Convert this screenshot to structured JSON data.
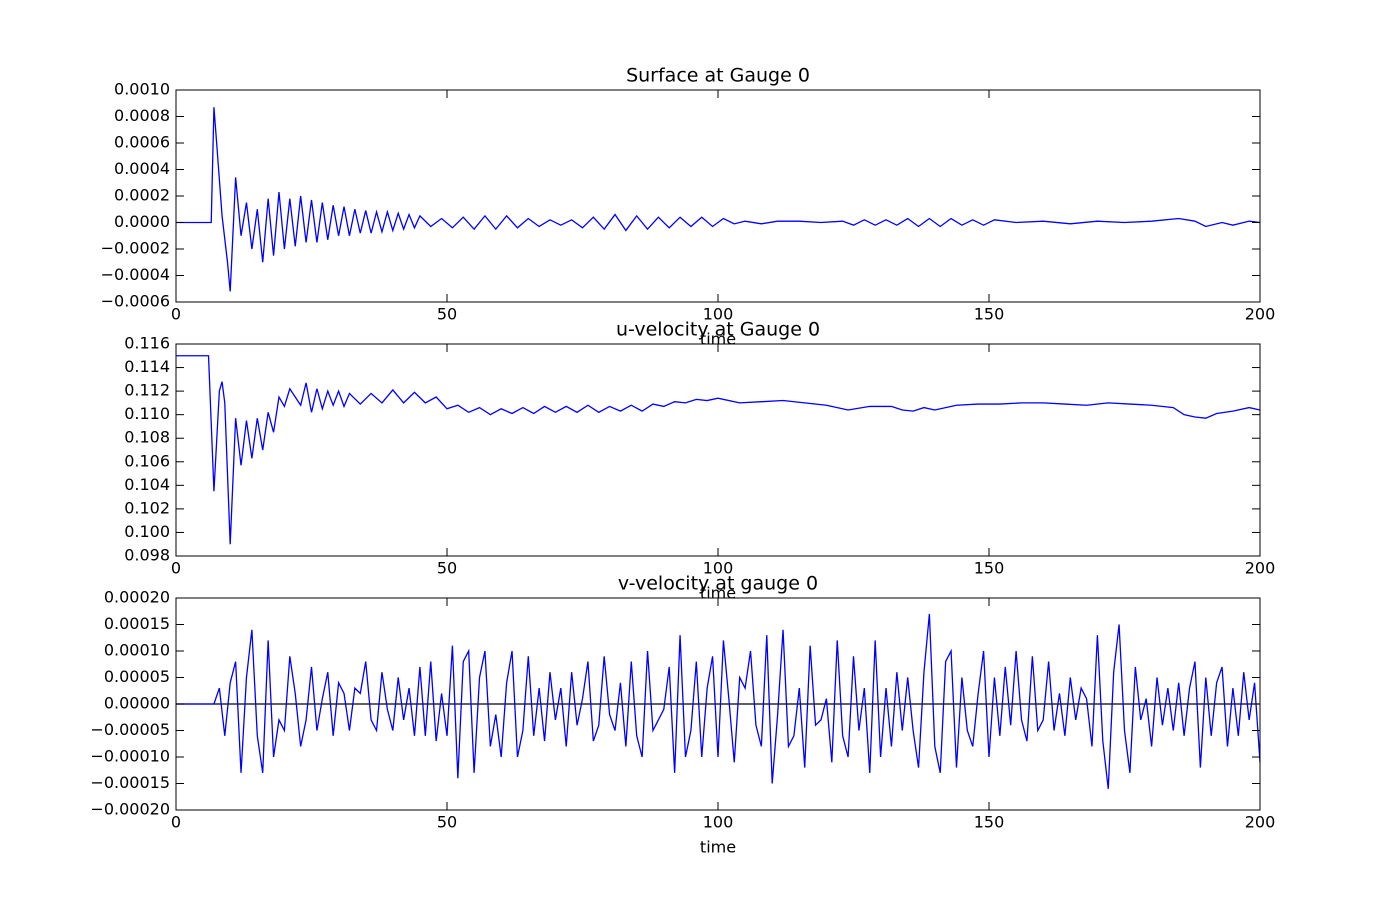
{
  "chart_data": [
    {
      "type": "line",
      "title": "Surface at Gauge 0",
      "xlabel": "time",
      "color": "#0000ff",
      "x": [
        0,
        6.5,
        7,
        7.5,
        8.5,
        9.5,
        10,
        11,
        12,
        13,
        14,
        15,
        16,
        17,
        18,
        19,
        20,
        21,
        22,
        23,
        24,
        25,
        26,
        27,
        28,
        29,
        30,
        31,
        32,
        33,
        34,
        35,
        36,
        37,
        38,
        39,
        40,
        41,
        42,
        43,
        44,
        45,
        47,
        49,
        51,
        53,
        55,
        57,
        59,
        61,
        63,
        65,
        67,
        69,
        71,
        73,
        75,
        77,
        79,
        81,
        83,
        85,
        87,
        89,
        91,
        93,
        95,
        97,
        99,
        101,
        103,
        105,
        108,
        111,
        115,
        119,
        123,
        125,
        127,
        129,
        131,
        133,
        135,
        137,
        139,
        141,
        143,
        145,
        147,
        149,
        151,
        155,
        160,
        165,
        170,
        175,
        180,
        185,
        188,
        190,
        193,
        195,
        198,
        200
      ],
      "values": [
        0,
        0,
        0.00087,
        0.0006,
        5e-05,
        -0.0003,
        -0.00052,
        0.00034,
        -0.0001,
        0.00015,
        -0.0002,
        0.0001,
        -0.0003,
        0.00018,
        -0.00025,
        0.00023,
        -0.0002,
        0.00018,
        -0.00018,
        0.0002,
        -0.00015,
        0.00017,
        -0.00015,
        0.00015,
        -0.00013,
        0.00013,
        -0.0001,
        0.00012,
        -0.0001,
        0.0001,
        -8e-05,
        9e-05,
        -8e-05,
        8e-05,
        -7e-05,
        8e-05,
        -6e-05,
        7e-05,
        -5e-05,
        6e-05,
        -4e-05,
        5e-05,
        -3e-05,
        3e-05,
        -4e-05,
        4e-05,
        -5e-05,
        5e-05,
        -5e-05,
        5e-05,
        -4e-05,
        3e-05,
        -3e-05,
        2e-05,
        -2e-05,
        2e-05,
        -4e-05,
        4e-05,
        -5e-05,
        6e-05,
        -6e-05,
        5e-05,
        -5e-05,
        4e-05,
        -4e-05,
        4e-05,
        -3e-05,
        4e-05,
        -3e-05,
        3e-05,
        -1e-05,
        1e-05,
        -1e-05,
        1e-05,
        1e-05,
        0,
        1e-05,
        -2e-05,
        2e-05,
        -2e-05,
        2e-05,
        -2e-05,
        3e-05,
        -3e-05,
        3e-05,
        -3e-05,
        3e-05,
        -2e-05,
        2e-05,
        -2e-05,
        2e-05,
        0,
        1e-05,
        -1e-05,
        1e-05,
        0,
        1e-05,
        3e-05,
        1e-05,
        -3e-05,
        0,
        -2e-05,
        1e-05,
        0
      ],
      "xlim": [
        0,
        200
      ],
      "xticks": [
        0,
        50,
        100,
        150,
        200
      ],
      "ylim": [
        -0.0006,
        0.001
      ],
      "yticks": [
        {
          "value": -0.0006,
          "label": "−0.0006"
        },
        {
          "value": -0.0004,
          "label": "−0.0004"
        },
        {
          "value": -0.0002,
          "label": "−0.0002"
        },
        {
          "value": 0,
          "label": "0.0000"
        },
        {
          "value": 0.0002,
          "label": "0.0002"
        },
        {
          "value": 0.0004,
          "label": "0.0004"
        },
        {
          "value": 0.0006,
          "label": "0.0006"
        },
        {
          "value": 0.0008,
          "label": "0.0008"
        },
        {
          "value": 0.001,
          "label": "0.0010"
        }
      ]
    },
    {
      "type": "line",
      "title": "u-velocity at Gauge 0",
      "xlabel": "time",
      "color": "#0000ff",
      "x": [
        0,
        6,
        7,
        8,
        8.5,
        9,
        10,
        11,
        12,
        13,
        14,
        15,
        16,
        17,
        18,
        19,
        20,
        21,
        22,
        23,
        24,
        25,
        26,
        27,
        28,
        29,
        30,
        31,
        32,
        34,
        36,
        38,
        40,
        42,
        44,
        46,
        48,
        50,
        52,
        54,
        56,
        58,
        60,
        62,
        64,
        66,
        68,
        70,
        72,
        74,
        76,
        78,
        80,
        82,
        84,
        86,
        88,
        90,
        92,
        94,
        96,
        98,
        100,
        104,
        108,
        112,
        116,
        120,
        124,
        128,
        132,
        134,
        136,
        138,
        140,
        144,
        148,
        152,
        156,
        160,
        164,
        168,
        172,
        176,
        180,
        184,
        186,
        188,
        190,
        192,
        195,
        198,
        200
      ],
      "values": [
        0.115,
        0.115,
        0.1035,
        0.112,
        0.1128,
        0.111,
        0.099,
        0.1097,
        0.1057,
        0.1095,
        0.1063,
        0.1097,
        0.107,
        0.1102,
        0.1085,
        0.1115,
        0.1107,
        0.1122,
        0.1115,
        0.1108,
        0.1127,
        0.1102,
        0.1122,
        0.1105,
        0.112,
        0.1108,
        0.112,
        0.1107,
        0.1118,
        0.1109,
        0.1118,
        0.111,
        0.1121,
        0.111,
        0.1119,
        0.111,
        0.1115,
        0.1105,
        0.1108,
        0.1102,
        0.1106,
        0.11,
        0.1105,
        0.1101,
        0.1106,
        0.1101,
        0.1107,
        0.1102,
        0.1107,
        0.1102,
        0.1108,
        0.1102,
        0.1107,
        0.1103,
        0.1108,
        0.1103,
        0.1109,
        0.1107,
        0.1111,
        0.111,
        0.1113,
        0.1112,
        0.1114,
        0.111,
        0.1111,
        0.1112,
        0.111,
        0.1108,
        0.1104,
        0.1107,
        0.1107,
        0.1104,
        0.1103,
        0.1106,
        0.1104,
        0.1108,
        0.1109,
        0.1109,
        0.111,
        0.111,
        0.1109,
        0.1108,
        0.111,
        0.1109,
        0.1108,
        0.1106,
        0.11,
        0.1098,
        0.1097,
        0.1101,
        0.1103,
        0.1106,
        0.1104
      ],
      "xlim": [
        0,
        200
      ],
      "xticks": [
        0,
        50,
        100,
        150,
        200
      ],
      "ylim": [
        0.098,
        0.116
      ],
      "yticks": [
        0.098,
        {
          "value": 0.1,
          "label": "0.100"
        },
        0.102,
        0.104,
        0.106,
        0.108,
        {
          "value": 0.11,
          "label": "0.110"
        },
        0.112,
        0.114,
        0.116
      ]
    },
    {
      "type": "line",
      "title": "v-velocity at gauge 0",
      "xlabel": "time",
      "color": "#0000ff",
      "hline": 0,
      "x": [
        0,
        7,
        8,
        9,
        10,
        11,
        12,
        13,
        14,
        15,
        16,
        17,
        18,
        19,
        20,
        21,
        22,
        23,
        24,
        25,
        26,
        27,
        28,
        29,
        30,
        31,
        32,
        33,
        34,
        35,
        36,
        37,
        38,
        39,
        40,
        41,
        42,
        43,
        44,
        45,
        46,
        47,
        48,
        49,
        50,
        51,
        52,
        53,
        54,
        55,
        56,
        57,
        58,
        59,
        60,
        61,
        62,
        63,
        64,
        65,
        66,
        67,
        68,
        69,
        70,
        71,
        72,
        73,
        74,
        75,
        76,
        77,
        78,
        79,
        80,
        81,
        82,
        83,
        84,
        85,
        86,
        87,
        88,
        89,
        90,
        91,
        92,
        93,
        94,
        95,
        96,
        97,
        98,
        99,
        100,
        101,
        102,
        103,
        104,
        105,
        106,
        107,
        108,
        109,
        110,
        111,
        112,
        113,
        114,
        115,
        116,
        117,
        118,
        119,
        120,
        121,
        122,
        123,
        124,
        125,
        126,
        127,
        128,
        129,
        130,
        131,
        132,
        133,
        134,
        135,
        136,
        137,
        138,
        139,
        140,
        141,
        142,
        143,
        144,
        145,
        146,
        147,
        148,
        149,
        150,
        151,
        152,
        153,
        154,
        155,
        156,
        157,
        158,
        159,
        160,
        161,
        162,
        163,
        164,
        165,
        166,
        167,
        168,
        169,
        170,
        171,
        172,
        173,
        174,
        175,
        176,
        177,
        178,
        179,
        180,
        181,
        182,
        183,
        184,
        185,
        186,
        187,
        188,
        189,
        190,
        191,
        192,
        193,
        194,
        195,
        196,
        197,
        198,
        199,
        200
      ],
      "values": [
        0,
        0,
        3e-05,
        -6e-05,
        4e-05,
        8e-05,
        -0.00013,
        5e-05,
        0.00014,
        -6e-05,
        -0.00013,
        0.00012,
        -0.0001,
        -3e-05,
        -5e-05,
        9e-05,
        2e-05,
        -8e-05,
        -3e-05,
        7e-05,
        -5e-05,
        1e-05,
        6e-05,
        -6e-05,
        4e-05,
        2e-05,
        -5e-05,
        3e-05,
        2e-05,
        8e-05,
        -3e-05,
        -5e-05,
        6e-05,
        -1e-05,
        -5e-05,
        5e-05,
        -3e-05,
        3e-05,
        -6e-05,
        7e-05,
        -6e-05,
        8e-05,
        -7e-05,
        2e-05,
        -6e-05,
        0.00011,
        -0.00014,
        8e-05,
        0.0001,
        -0.00013,
        5e-05,
        0.0001,
        -8e-05,
        -2e-05,
        -0.0001,
        4e-05,
        0.0001,
        -0.0001,
        -5e-05,
        9e-05,
        -6e-05,
        3e-05,
        -7e-05,
        6e-05,
        -3e-05,
        3e-05,
        -8e-05,
        6e-05,
        -4e-05,
        1e-05,
        8e-05,
        -7e-05,
        -4e-05,
        9e-05,
        -2e-05,
        -5e-05,
        4e-05,
        -8e-05,
        8e-05,
        -6e-05,
        -0.0001,
        0.0001,
        -5e-05,
        -3e-05,
        -1e-05,
        7e-05,
        -0.00013,
        0.00013,
        -0.0001,
        -5e-05,
        8e-05,
        -0.0001,
        3e-05,
        9e-05,
        -0.0001,
        0.00012,
        1e-05,
        -0.00011,
        5e-05,
        3e-05,
        0.0001,
        -4e-05,
        -8e-05,
        0.00013,
        -0.00015,
        -2e-05,
        0.00014,
        -8e-05,
        -6e-05,
        3e-05,
        -0.00012,
        0.00011,
        -4e-05,
        -3e-05,
        1e-05,
        -0.00011,
        0.00012,
        -6e-05,
        -0.0001,
        9e-05,
        -5e-05,
        3e-05,
        -0.00013,
        0.00012,
        -0.0001,
        3e-05,
        -8e-05,
        6e-05,
        -5e-05,
        5e-05,
        -5e-05,
        -0.00012,
        6e-05,
        0.00017,
        -8e-05,
        -0.00013,
        8e-05,
        0.0001,
        -0.00012,
        5e-05,
        -5e-05,
        -8e-05,
        2e-05,
        0.0001,
        -0.0001,
        5e-05,
        -6e-05,
        7e-05,
        -4e-05,
        0.0001,
        -3e-05,
        -7e-05,
        9e-05,
        -5e-05,
        -3e-05,
        8e-05,
        -5e-05,
        2e-05,
        -6e-05,
        5e-05,
        -3e-05,
        3e-05,
        1e-05,
        -8e-05,
        0.00013,
        -7e-05,
        -0.00016,
        6e-05,
        0.00015,
        -5e-05,
        -0.00013,
        7e-05,
        -3e-05,
        1e-05,
        -8e-05,
        5e-05,
        -4e-05,
        3e-05,
        -5e-05,
        4e-05,
        -6e-05,
        3e-05,
        8e-05,
        -0.00012,
        5e-05,
        -6e-05,
        4e-05,
        7e-05,
        -8e-05,
        3e-05,
        -6e-05,
        6e-05,
        -3e-05,
        4e-05,
        -0.00011
      ],
      "xlim": [
        0,
        200
      ],
      "xticks": [
        0,
        50,
        100,
        150,
        200
      ],
      "ylim": [
        -0.0002,
        0.0002
      ],
      "yticks": [
        {
          "value": -0.0002,
          "label": "−0.00020"
        },
        {
          "value": -0.00015,
          "label": "−0.00015"
        },
        {
          "value": -0.0001,
          "label": "−0.00010"
        },
        {
          "value": -5e-05,
          "label": "−0.00005"
        },
        {
          "value": 0,
          "label": "0.00000"
        },
        {
          "value": 5e-05,
          "label": "0.00005"
        },
        {
          "value": 0.0001,
          "label": "0.00010"
        },
        {
          "value": 0.00015,
          "label": "0.00015"
        },
        {
          "value": 0.0002,
          "label": "0.00020"
        }
      ]
    }
  ]
}
